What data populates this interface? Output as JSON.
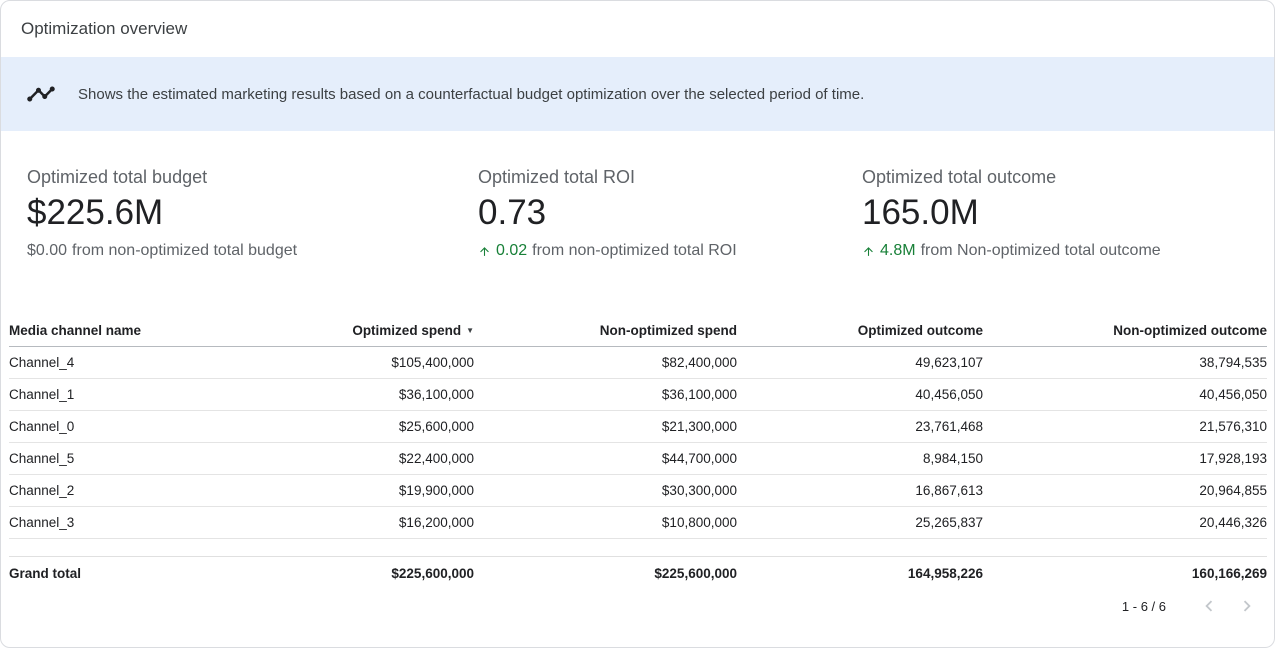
{
  "header": {
    "title": "Optimization overview"
  },
  "banner": {
    "icon": "timeline-insights-icon",
    "text": "Shows the estimated marketing results based on a counterfactual budget optimization over the selected period of time."
  },
  "kpis": [
    {
      "label": "Optimized total budget",
      "value": "$225.6M",
      "delta_value": "$0.00",
      "delta_text": "from non-optimized total budget",
      "delta_positive": false
    },
    {
      "label": "Optimized total ROI",
      "value": "0.73",
      "delta_value": "0.02",
      "delta_text": "from non-optimized total ROI",
      "delta_positive": true
    },
    {
      "label": "Optimized total outcome",
      "value": "165.0M",
      "delta_value": "4.8M",
      "delta_text": "from Non-optimized total outcome",
      "delta_positive": true
    }
  ],
  "table": {
    "columns": [
      {
        "label": "Media channel name",
        "sorted": false
      },
      {
        "label": "Optimized spend",
        "sorted": true,
        "sort_direction": "desc",
        "sort_glyph": "▼"
      },
      {
        "label": "Non-optimized spend",
        "sorted": false
      },
      {
        "label": "Optimized outcome",
        "sorted": false
      },
      {
        "label": "Non-optimized outcome",
        "sorted": false
      }
    ],
    "rows": [
      [
        "Channel_4",
        "$105,400,000",
        "$82,400,000",
        "49,623,107",
        "38,794,535"
      ],
      [
        "Channel_1",
        "$36,100,000",
        "$36,100,000",
        "40,456,050",
        "40,456,050"
      ],
      [
        "Channel_0",
        "$25,600,000",
        "$21,300,000",
        "23,761,468",
        "21,576,310"
      ],
      [
        "Channel_5",
        "$22,400,000",
        "$44,700,000",
        "8,984,150",
        "17,928,193"
      ],
      [
        "Channel_2",
        "$19,900,000",
        "$30,300,000",
        "16,867,613",
        "20,964,855"
      ],
      [
        "Channel_3",
        "$16,200,000",
        "$10,800,000",
        "25,265,837",
        "20,446,326"
      ]
    ],
    "grand_total": [
      "Grand total",
      "$225,600,000",
      "$225,600,000",
      "164,958,226",
      "160,166,269"
    ]
  },
  "pagination": {
    "label": "1 - 6 / 6",
    "prev_icon": "chevron-left-icon",
    "next_icon": "chevron-right-icon"
  },
  "colors": {
    "positive_green": "#188038",
    "banner_background": "#e5eefb"
  }
}
